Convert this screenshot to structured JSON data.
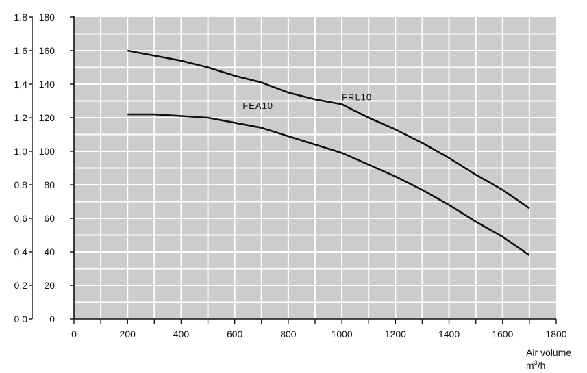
{
  "chart_data": {
    "type": "line",
    "title": "",
    "xlabel": "Air volume",
    "xunit": "m³/h",
    "ylabel": "",
    "xlim": [
      0,
      1800
    ],
    "ylim": [
      0,
      180
    ],
    "y2lim": [
      0,
      1.8
    ],
    "x_ticks": [
      "0",
      "200",
      "400",
      "600",
      "800",
      "1000",
      "1200",
      "1400",
      "1600",
      "1800"
    ],
    "y_ticks": [
      "0",
      "20",
      "40",
      "60",
      "80",
      "100",
      "120",
      "140",
      "160",
      "180"
    ],
    "y2_ticks": [
      "0,0",
      "0,2",
      "0,4",
      "0,6",
      "0,8",
      "1,0",
      "1,2",
      "1,4",
      "1,6",
      "1,8"
    ],
    "grid": true,
    "plot_background": "#cccccc",
    "grid_color": "#ffffff",
    "line_color": "#111111",
    "series": [
      {
        "name": "FRL10",
        "x": [
          200,
          300,
          400,
          500,
          600,
          700,
          800,
          900,
          1000,
          1100,
          1200,
          1300,
          1400,
          1500,
          1600,
          1700
        ],
        "y": [
          160,
          157,
          154,
          150,
          145,
          141,
          135,
          131,
          128,
          120,
          113,
          105,
          96,
          86,
          77,
          66
        ]
      },
      {
        "name": "FEA10",
        "x": [
          200,
          300,
          400,
          500,
          600,
          700,
          800,
          900,
          1000,
          1100,
          1200,
          1300,
          1400,
          1500,
          1600,
          1700
        ],
        "y": [
          122,
          122,
          121,
          120,
          117,
          114,
          109,
          104,
          99,
          92,
          85,
          77,
          68,
          58,
          49,
          38
        ]
      }
    ]
  }
}
